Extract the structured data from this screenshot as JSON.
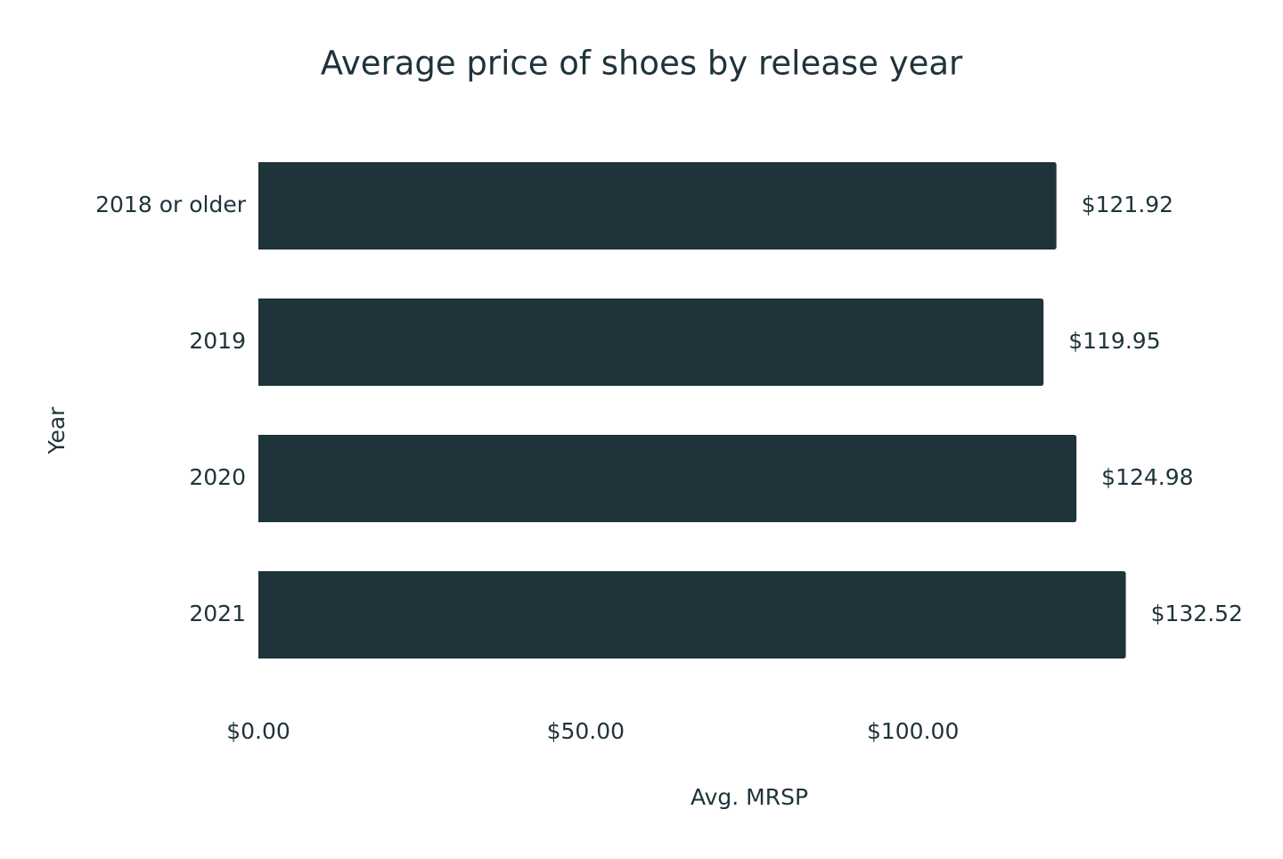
{
  "chart_data": {
    "type": "bar",
    "orientation": "horizontal",
    "title": "Average price of shoes by release year",
    "x_label": "Avg. MRSP",
    "y_label": "Year",
    "categories": [
      "2018 or older",
      "2019",
      "2020",
      "2021"
    ],
    "values": [
      121.92,
      119.95,
      124.98,
      132.52
    ],
    "value_labels": [
      "$121.92",
      "$119.95",
      "$124.98",
      "$132.52"
    ],
    "color": "#1e333a",
    "xlim": [
      0,
      150
    ],
    "xticks": [
      {
        "value": 0,
        "label": "$0.00"
      },
      {
        "value": 50,
        "label": "$50.00"
      },
      {
        "value": 100,
        "label": "$100.00"
      }
    ],
    "grid": false
  }
}
